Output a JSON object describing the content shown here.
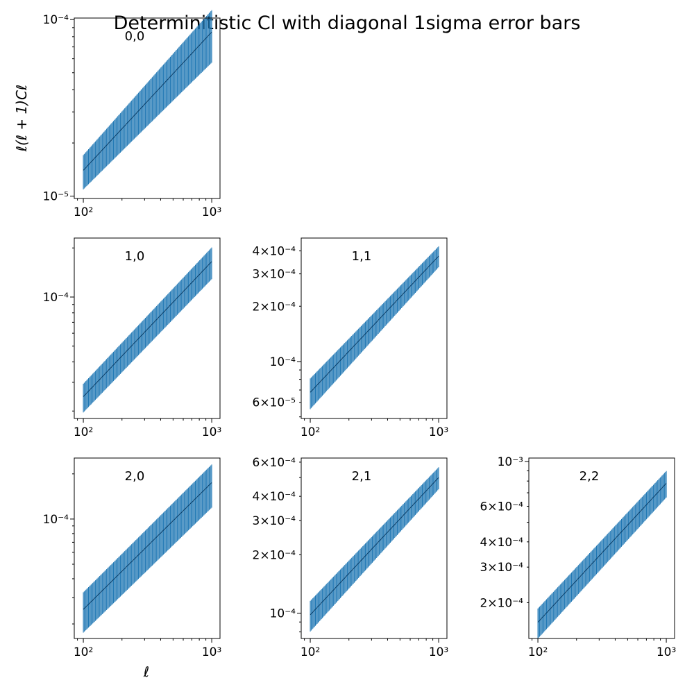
{
  "chart_data": {
    "type": "errorbar-grid",
    "title": "Determinitistic Cl with diagonal 1sigma error bars",
    "xlabel": "ℓ",
    "ylabel": "ℓ(ℓ + 1)Cℓ",
    "x_scale": "log",
    "y_scale": "log",
    "series_color": "#1f77b4",
    "panels": [
      {
        "label": "0,0",
        "row": 0,
        "col": 0,
        "xlim": [
          85,
          1160
        ],
        "ylim": [
          9.7e-06,
          0.000102
        ],
        "ell_range": [
          100,
          1000
        ],
        "center_start": 1.4e-05,
        "center_end": 8.5e-05,
        "sigma_rel_start": 0.22,
        "sigma_rel_end": 0.33,
        "yticks": [
          {
            "v": 1e-05,
            "label": "10⁻⁵"
          },
          {
            "v": 0.0001,
            "label": "10⁻⁴"
          }
        ],
        "xticks": [
          {
            "v": 100,
            "label": "10²"
          },
          {
            "v": 1000,
            "label": "10³"
          }
        ]
      },
      {
        "label": "1,0",
        "row": 1,
        "col": 0,
        "xlim": [
          85,
          1160
        ],
        "ylim": [
          1.8e-05,
          0.00023
        ],
        "ell_range": [
          100,
          1000
        ],
        "center_start": 2.45e-05,
        "center_end": 0.000165,
        "sigma_rel_start": 0.2,
        "sigma_rel_end": 0.22,
        "yticks": [
          {
            "v": 0.0001,
            "label": "10⁻⁴"
          }
        ],
        "xticks": [
          {
            "v": 100,
            "label": "10²"
          },
          {
            "v": 1000,
            "label": "10³"
          }
        ]
      },
      {
        "label": "1,1",
        "row": 1,
        "col": 1,
        "xlim": [
          85,
          1160
        ],
        "ylim": [
          4.9e-05,
          0.00047
        ],
        "ell_range": [
          100,
          1000
        ],
        "center_start": 6.8e-05,
        "center_end": 0.000375,
        "sigma_rel_start": 0.19,
        "sigma_rel_end": 0.13,
        "yticks": [
          {
            "v": 6e-05,
            "label": "6×10⁻⁵"
          },
          {
            "v": 0.0001,
            "label": "10⁻⁴"
          },
          {
            "v": 0.0002,
            "label": "2×10⁻⁴"
          },
          {
            "v": 0.0003,
            "label": "3×10⁻⁴"
          },
          {
            "v": 0.0004,
            "label": "4×10⁻⁴"
          }
        ],
        "xticks": [
          {
            "v": 100,
            "label": "10²"
          },
          {
            "v": 1000,
            "label": "10³"
          }
        ]
      },
      {
        "label": "2,0",
        "row": 2,
        "col": 0,
        "xlim": [
          85,
          1160
        ],
        "ylim": [
          1.6e-05,
          0.000255
        ],
        "ell_range": [
          100,
          1000
        ],
        "center_start": 2.5e-05,
        "center_end": 0.000175,
        "sigma_rel_start": 0.3,
        "sigma_rel_end": 0.32,
        "yticks": [
          {
            "v": 0.0001,
            "label": "10⁻⁴"
          }
        ],
        "xticks": [
          {
            "v": 100,
            "label": "10²"
          },
          {
            "v": 1000,
            "label": "10³"
          }
        ]
      },
      {
        "label": "2,1",
        "row": 2,
        "col": 1,
        "xlim": [
          85,
          1160
        ],
        "ylim": [
          7.4e-05,
          0.00063
        ],
        "ell_range": [
          100,
          1000
        ],
        "center_start": 9.8e-05,
        "center_end": 0.0005,
        "sigma_rel_start": 0.18,
        "sigma_rel_end": 0.13,
        "yticks": [
          {
            "v": 0.0001,
            "label": "10⁻⁴"
          },
          {
            "v": 0.0002,
            "label": "2×10⁻⁴"
          },
          {
            "v": 0.0003,
            "label": "3×10⁻⁴"
          },
          {
            "v": 0.0004,
            "label": "4×10⁻⁴"
          },
          {
            "v": 0.0006,
            "label": "6×10⁻⁴"
          }
        ],
        "xticks": [
          {
            "v": 100,
            "label": "10²"
          },
          {
            "v": 1000,
            "label": "10³"
          }
        ]
      },
      {
        "label": "2,2",
        "row": 2,
        "col": 2,
        "xlim": [
          85,
          1160
        ],
        "ylim": [
          0.000133,
          0.00104
        ],
        "ell_range": [
          100,
          1000
        ],
        "center_start": 0.00016,
        "center_end": 0.00078,
        "sigma_rel_start": 0.17,
        "sigma_rel_end": 0.15,
        "yticks": [
          {
            "v": 0.0002,
            "label": "2×10⁻⁴"
          },
          {
            "v": 0.0003,
            "label": "3×10⁻⁴"
          },
          {
            "v": 0.0004,
            "label": "4×10⁻⁴"
          },
          {
            "v": 0.0006,
            "label": "6×10⁻⁴"
          },
          {
            "v": 0.001,
            "label": "10⁻³"
          }
        ],
        "xticks": [
          {
            "v": 100,
            "label": "10²"
          },
          {
            "v": 1000,
            "label": "10³"
          }
        ]
      }
    ]
  }
}
